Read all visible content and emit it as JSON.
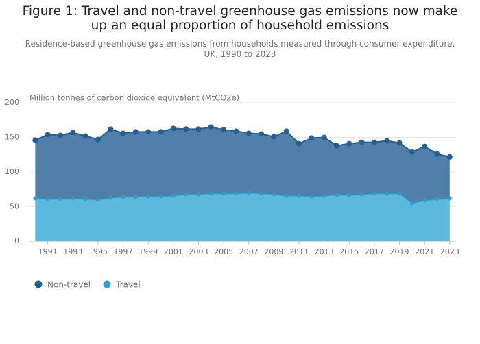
{
  "chart_data": {
    "type": "area",
    "title": "Figure 1: Travel and non-travel greenhouse gas emissions now make up an equal proportion of household emissions",
    "subtitle": "Residence-based greenhouse gas emissions from households measured through consumer expenditure, UK, 1990 to 2023",
    "y_label": "Million tonnes of carbon dioxide equivalent (MtCO2e)",
    "x": [
      1990,
      1991,
      1992,
      1993,
      1994,
      1995,
      1996,
      1997,
      1998,
      1999,
      2000,
      2001,
      2002,
      2003,
      2004,
      2005,
      2006,
      2007,
      2008,
      2009,
      2010,
      2011,
      2012,
      2013,
      2014,
      2015,
      2016,
      2017,
      2018,
      2019,
      2020,
      2021,
      2022,
      2023
    ],
    "series": [
      {
        "name": "Non-travel",
        "color": "#206095",
        "fill": "#5080aa",
        "values": [
          84,
          93,
          92,
          95,
          91,
          87,
          99,
          92,
          94,
          93,
          93,
          97,
          94,
          94,
          96,
          92,
          90,
          86,
          86,
          83,
          93,
          75,
          84,
          84,
          71,
          74,
          75,
          74,
          76,
          73,
          74,
          78,
          65,
          60
        ]
      },
      {
        "name": "Travel",
        "color": "#27a0cc",
        "fill": "#5cb8dc",
        "values": [
          62,
          61,
          61,
          62,
          61,
          60,
          63,
          64,
          64,
          65,
          65,
          66,
          68,
          68,
          69,
          69,
          69,
          70,
          69,
          68,
          66,
          66,
          65,
          66,
          67,
          67,
          68,
          69,
          69,
          69,
          55,
          59,
          61,
          62
        ]
      }
    ],
    "xlim": [
      1989.6,
      2023.5
    ],
    "xticks": [
      1991,
      1993,
      1995,
      1997,
      1999,
      2001,
      2003,
      2005,
      2007,
      2009,
      2011,
      2013,
      2015,
      2017,
      2019,
      2021,
      2023
    ],
    "ylim": [
      0,
      200
    ],
    "yticks": [
      0,
      50,
      100,
      150,
      200
    ],
    "grid": true,
    "legend": "bottom-left"
  }
}
